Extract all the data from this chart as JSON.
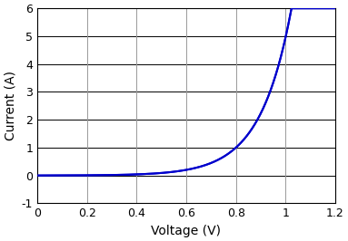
{
  "title": "",
  "xlabel": "Voltage (V)",
  "ylabel": "Current (A)",
  "xlim": [
    0,
    1.2
  ],
  "ylim": [
    -1,
    6
  ],
  "xticks": [
    0,
    0.2,
    0.4,
    0.6,
    0.8,
    1.0,
    1.2
  ],
  "yticks": [
    -1,
    0,
    1,
    2,
    3,
    4,
    5,
    6
  ],
  "line_color": "#0000cc",
  "line_width": 1.5,
  "grid_color_h": "#000000",
  "grid_color_v": "#999999",
  "background_color": "#ffffff",
  "diode_A": 1.2e-05,
  "diode_k": 12.5,
  "xlabel_fontsize": 10,
  "ylabel_fontsize": 10,
  "tick_fontsize": 9
}
